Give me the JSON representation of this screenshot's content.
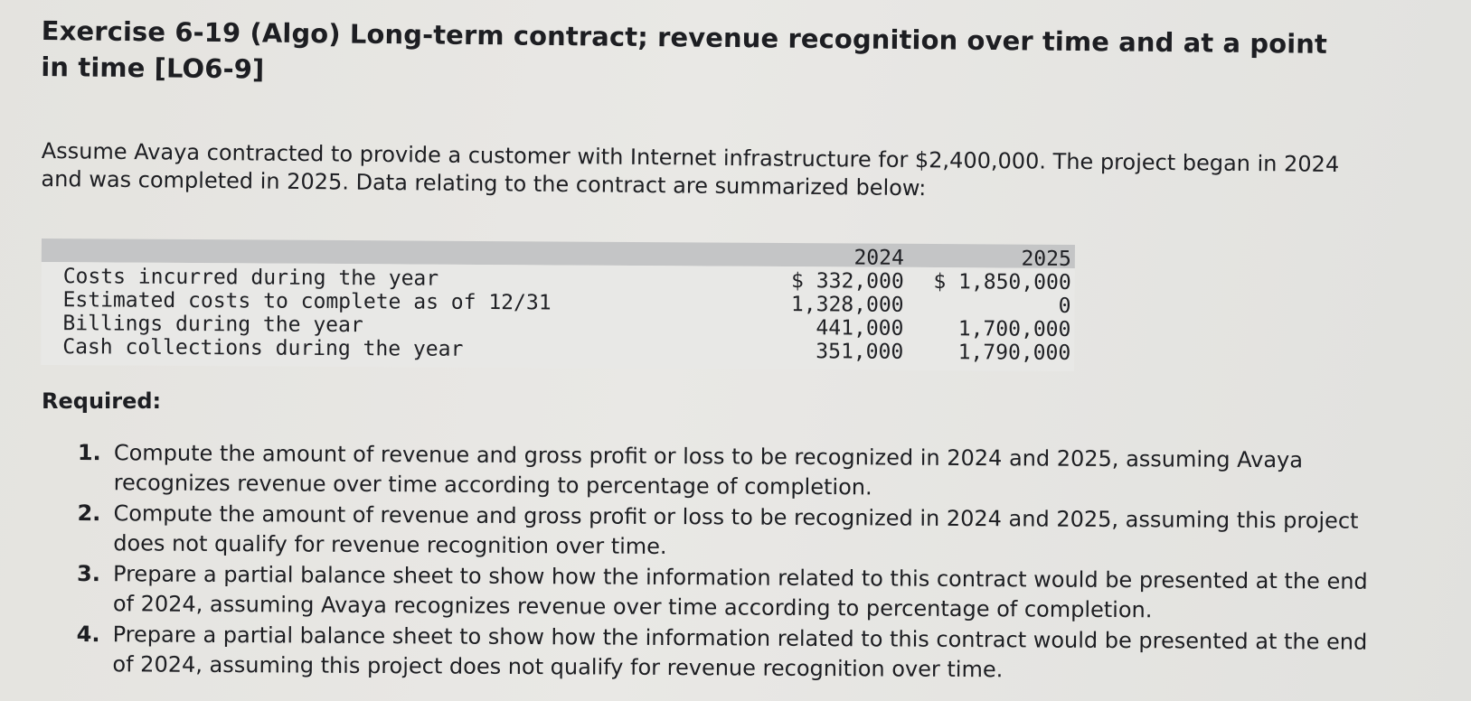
{
  "header": {
    "title": "Exercise 6-19 (Algo) Long-term contract; revenue recognition over time and at a point in time [LO6-9]"
  },
  "intro": {
    "text": "Assume Avaya contracted to provide a customer with Internet infrastructure for $2,400,000. The project began in 2024 and was completed in 2025. Data relating to the contract are summarized below:"
  },
  "table": {
    "headers": [
      "",
      "2024",
      "2025"
    ],
    "rows": [
      {
        "label": "Costs incurred during the year",
        "y2024": "$ 332,000",
        "y2025": "$ 1,850,000"
      },
      {
        "label": "Estimated costs to complete as of 12/31",
        "y2024": "1,328,000",
        "y2025": "0"
      },
      {
        "label": "Billings during the year",
        "y2024": "441,000",
        "y2025": "1,700,000"
      },
      {
        "label": "Cash collections during the year",
        "y2024": "351,000",
        "y2025": "1,790,000"
      }
    ]
  },
  "required": {
    "heading": "Required:",
    "items": [
      {
        "num": "1.",
        "text": "Compute the amount of revenue and gross profit or loss to be recognized in 2024 and 2025, assuming Avaya recognizes revenue over time according to percentage of completion."
      },
      {
        "num": "2.",
        "text": "Compute the amount of revenue and gross profit or loss to be recognized in 2024 and 2025, assuming this project does not qualify for revenue recognition over time."
      },
      {
        "num": "3.",
        "text": "Prepare a partial balance sheet to show how the information related to this contract would be presented at the end of 2024, assuming Avaya recognizes revenue over time according to percentage of completion."
      },
      {
        "num": "4.",
        "text": "Prepare a partial balance sheet to show how the information related to this contract would be presented at the end of 2024, assuming this project does not qualify for revenue recognition over time."
      }
    ]
  }
}
